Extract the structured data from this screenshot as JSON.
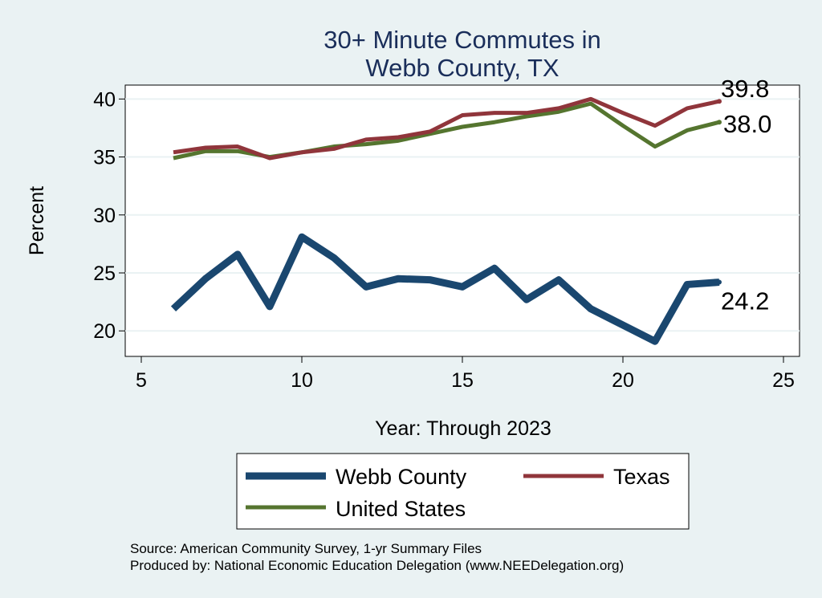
{
  "chart_data": {
    "type": "line",
    "title_line1": "30+ Minute Commutes in",
    "title_line2": "Webb County, TX",
    "xlabel": "Year: Through 2023",
    "ylabel": "Percent",
    "xlim": [
      4.5,
      25.5
    ],
    "ylim": [
      17.8,
      41.2
    ],
    "xticks": [
      5,
      10,
      15,
      20,
      25
    ],
    "yticks": [
      20,
      25,
      30,
      35,
      40
    ],
    "grid": true,
    "legend_position": "bottom",
    "series": [
      {
        "name": "Webb County",
        "color": "#1a476f",
        "x": [
          6,
          7,
          8,
          9,
          10,
          11,
          12,
          13,
          14,
          15,
          16,
          17,
          18,
          19,
          20,
          21,
          22,
          23
        ],
        "values": [
          21.9,
          24.5,
          26.6,
          22.1,
          28.1,
          26.3,
          23.8,
          24.5,
          24.4,
          23.8,
          25.4,
          22.7,
          24.4,
          21.9,
          20.5,
          19.1,
          24.0,
          24.2
        ],
        "end_label": "24.2"
      },
      {
        "name": "Texas",
        "color": "#90353b",
        "x": [
          6,
          7,
          8,
          9,
          10,
          11,
          12,
          13,
          14,
          15,
          16,
          17,
          18,
          19,
          20,
          21,
          22,
          23
        ],
        "values": [
          35.4,
          35.8,
          35.9,
          34.9,
          35.4,
          35.7,
          36.5,
          36.7,
          37.2,
          38.6,
          38.8,
          38.8,
          39.2,
          40.0,
          38.8,
          37.7,
          39.2,
          39.8
        ],
        "end_label": "39.8"
      },
      {
        "name": "United States",
        "color": "#55752f",
        "x": [
          6,
          7,
          8,
          9,
          10,
          11,
          12,
          13,
          14,
          15,
          16,
          17,
          18,
          19,
          20,
          21,
          22,
          23
        ],
        "values": [
          34.9,
          35.5,
          35.5,
          35.0,
          35.4,
          35.9,
          36.1,
          36.4,
          37.0,
          37.6,
          38.0,
          38.5,
          38.9,
          39.6,
          37.7,
          35.9,
          37.3,
          38.0
        ],
        "end_label": "38.0"
      }
    ]
  },
  "footnotes": {
    "source": "Source: American Community Survey, 1-yr Summary Files",
    "produced_by": "Produced by: National Economic Education Delegation (www.NEEDelegation.org)"
  }
}
